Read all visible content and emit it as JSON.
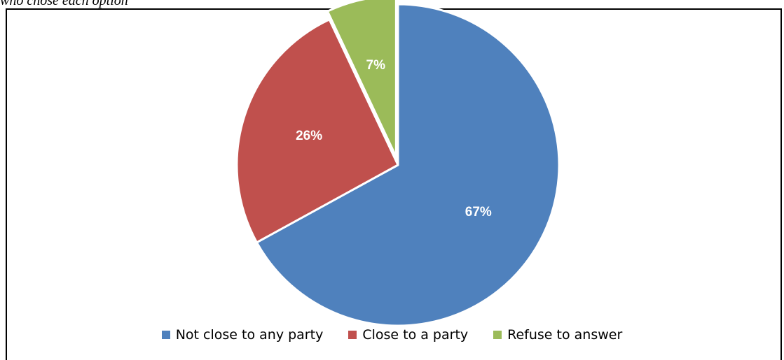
{
  "caption": "who chose each option",
  "chart_data": {
    "type": "pie",
    "title": "",
    "start_angle_deg": 0,
    "direction": "clockwise",
    "slices": [
      {
        "name": "Not close to any party",
        "value": 67,
        "label": "67%",
        "color": "#4F81BD",
        "exploded": false
      },
      {
        "name": "Close to a party",
        "value": 26,
        "label": "26%",
        "color": "#C0504D",
        "exploded": false
      },
      {
        "name": "Refuse to answer",
        "value": 7,
        "label": "7%",
        "color": "#9BBB59",
        "exploded": true
      }
    ],
    "legend_position": "bottom"
  }
}
